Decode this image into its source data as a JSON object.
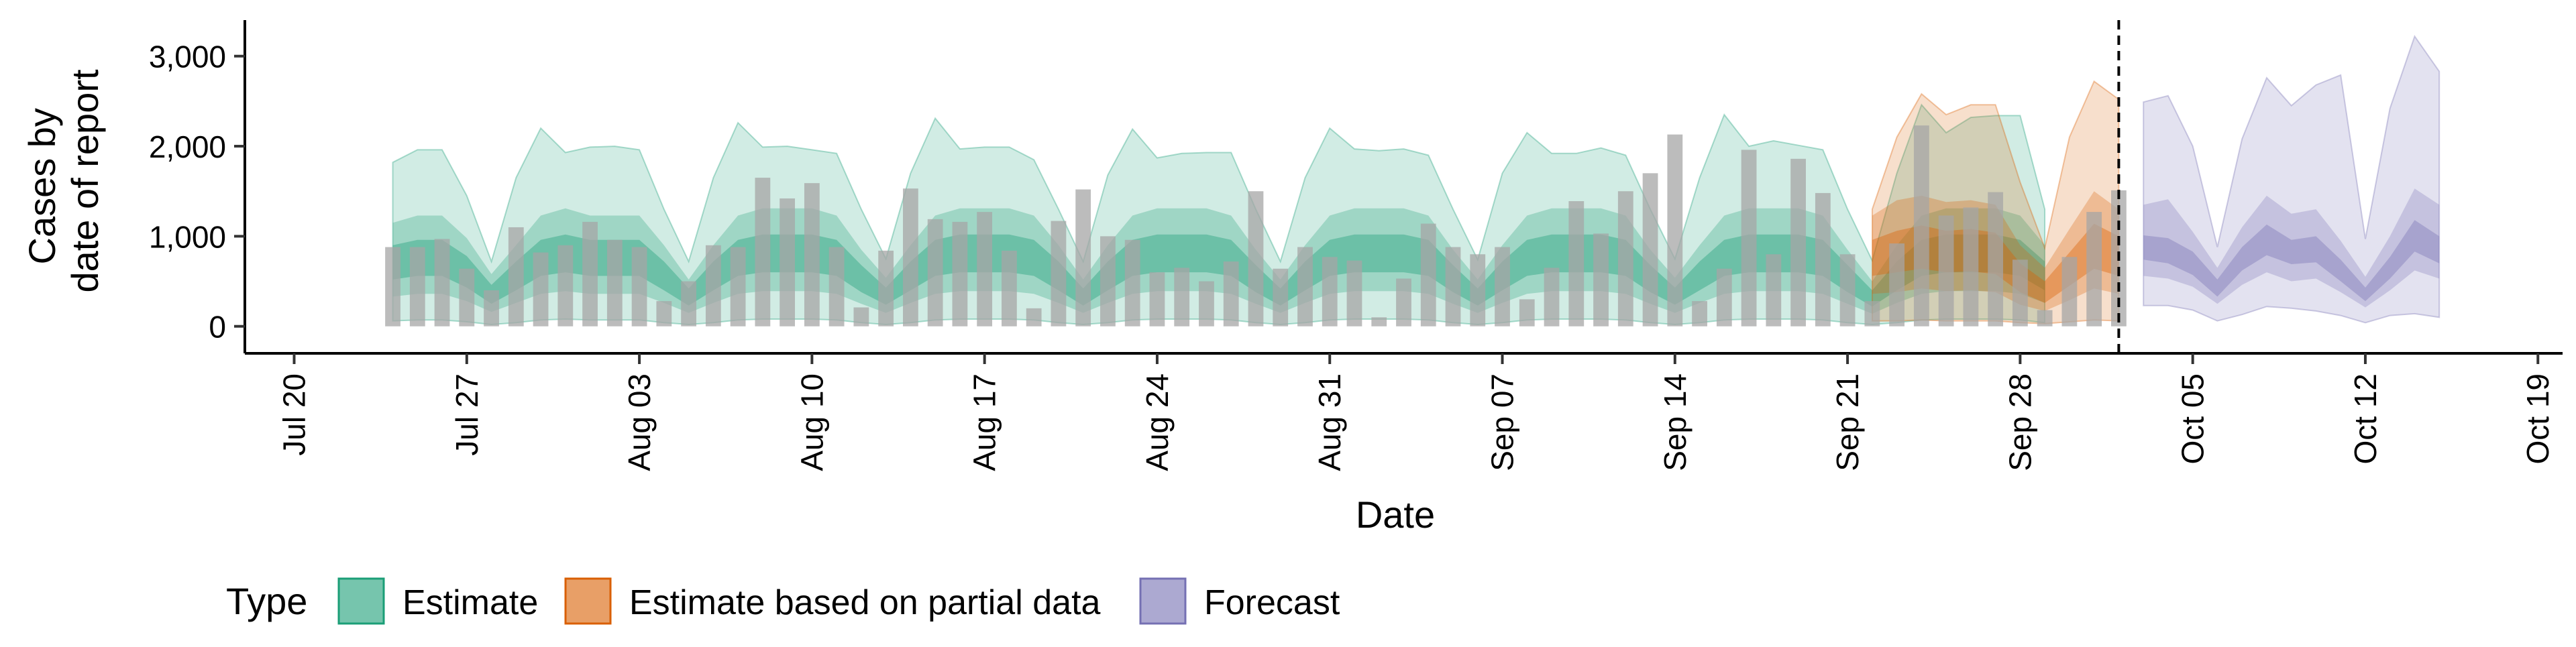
{
  "chart_data": {
    "type": "area",
    "xlabel": "Date",
    "ylabel_lines": [
      "Cases by",
      "date of report"
    ],
    "x_range": [
      "2020-07-18",
      "2020-10-20"
    ],
    "ylim": [
      -300,
      3400
    ],
    "y_ticks": [
      {
        "value": 0,
        "label": "0"
      },
      {
        "value": 1000,
        "label": "1,000"
      },
      {
        "value": 2000,
        "label": "2,000"
      },
      {
        "value": 3000,
        "label": "3,000"
      }
    ],
    "x_ticks": [
      {
        "date": "2020-07-20",
        "label": "Jul 20"
      },
      {
        "date": "2020-07-27",
        "label": "Jul 27"
      },
      {
        "date": "2020-08-03",
        "label": "Aug 03"
      },
      {
        "date": "2020-08-10",
        "label": "Aug 10"
      },
      {
        "date": "2020-08-17",
        "label": "Aug 17"
      },
      {
        "date": "2020-08-24",
        "label": "Aug 24"
      },
      {
        "date": "2020-08-31",
        "label": "Aug 31"
      },
      {
        "date": "2020-09-07",
        "label": "Sep 07"
      },
      {
        "date": "2020-09-14",
        "label": "Sep 14"
      },
      {
        "date": "2020-09-21",
        "label": "Sep 21"
      },
      {
        "date": "2020-09-28",
        "label": "Sep 28"
      },
      {
        "date": "2020-10-05",
        "label": "Oct 05"
      },
      {
        "date": "2020-10-12",
        "label": "Oct 12"
      },
      {
        "date": "2020-10-19",
        "label": "Oct 19"
      }
    ],
    "vline_date": "2020-10-02",
    "grid": false,
    "legend": {
      "position": "bottom",
      "title": "Type",
      "entries": [
        {
          "label": "Estimate",
          "color": "#1b9e77"
        },
        {
          "label": "Estimate based on partial data",
          "color": "#d95f02"
        },
        {
          "label": "Forecast",
          "color": "#7570b3"
        }
      ]
    },
    "colors": {
      "Estimate": "#1b9e77",
      "Estimate based on partial data": "#d95f02",
      "Forecast": "#7570b3",
      "bars": "#a6a6a6"
    },
    "bars": {
      "start_date": "2020-07-24",
      "values": [
        880,
        880,
        970,
        640,
        400,
        1100,
        820,
        900,
        1160,
        960,
        880,
        280,
        500,
        900,
        880,
        1650,
        1420,
        1590,
        880,
        210,
        840,
        1530,
        1190,
        1160,
        1270,
        840,
        200,
        1170,
        1520,
        1000,
        960,
        600,
        650,
        500,
        720,
        1500,
        640,
        880,
        770,
        730,
        100,
        530,
        1140,
        880,
        800,
        880,
        300,
        650,
        1390,
        1030,
        1500,
        1700,
        2130,
        280,
        640,
        1960,
        800,
        1860,
        1480,
        800,
        280,
        920,
        2230,
        1230,
        1320,
        1490,
        740,
        180,
        770,
        1270,
        1510
      ]
    },
    "series": [
      {
        "name": "Estimate",
        "start_date": "2020-07-24",
        "median": [
          700,
          750,
          750,
          600,
          350,
          550,
          750,
          800,
          750,
          750,
          750,
          550,
          320,
          550,
          750,
          800,
          800,
          800,
          750,
          520,
          330,
          550,
          750,
          800,
          800,
          800,
          750,
          550,
          320,
          550,
          750,
          800,
          800,
          800,
          750,
          520,
          320,
          550,
          750,
          800,
          800,
          800,
          750,
          520,
          320,
          550,
          750,
          800,
          800,
          800,
          750,
          520,
          330,
          550,
          750,
          800,
          800,
          800,
          750,
          520,
          300,
          550,
          750,
          800,
          800,
          800,
          750,
          550
        ],
        "inner_lo": [
          520,
          560,
          560,
          430,
          250,
          400,
          560,
          600,
          560,
          560,
          560,
          400,
          230,
          400,
          560,
          600,
          600,
          600,
          560,
          380,
          240,
          400,
          560,
          600,
          600,
          600,
          560,
          400,
          230,
          400,
          560,
          600,
          600,
          600,
          560,
          380,
          230,
          400,
          560,
          600,
          600,
          600,
          560,
          380,
          230,
          400,
          560,
          600,
          600,
          600,
          560,
          380,
          240,
          400,
          560,
          600,
          600,
          600,
          560,
          380,
          220,
          400,
          560,
          600,
          600,
          600,
          560,
          400
        ],
        "inner_hi": [
          900,
          960,
          960,
          780,
          460,
          720,
          960,
          1020,
          960,
          960,
          960,
          720,
          420,
          720,
          960,
          1020,
          1020,
          1020,
          960,
          680,
          430,
          720,
          960,
          1020,
          1020,
          1020,
          960,
          720,
          420,
          720,
          960,
          1020,
          1020,
          1020,
          960,
          680,
          420,
          720,
          960,
          1020,
          1020,
          1020,
          960,
          680,
          420,
          720,
          960,
          1020,
          1020,
          1020,
          960,
          680,
          430,
          720,
          960,
          1020,
          1020,
          1020,
          960,
          680,
          400,
          720,
          960,
          1020,
          1020,
          1020,
          960,
          720
        ],
        "mid_lo": [
          330,
          360,
          360,
          280,
          160,
          260,
          360,
          390,
          360,
          360,
          360,
          260,
          150,
          260,
          360,
          390,
          390,
          390,
          360,
          250,
          150,
          260,
          360,
          390,
          390,
          390,
          360,
          260,
          150,
          260,
          360,
          390,
          390,
          390,
          360,
          250,
          150,
          260,
          360,
          390,
          390,
          390,
          360,
          250,
          150,
          260,
          360,
          390,
          390,
          390,
          360,
          250,
          150,
          260,
          360,
          390,
          390,
          390,
          360,
          250,
          140,
          260,
          360,
          390,
          390,
          390,
          360,
          260
        ],
        "mid_hi": [
          1150,
          1230,
          1230,
          980,
          580,
          900,
          1230,
          1310,
          1230,
          1230,
          1230,
          900,
          520,
          900,
          1230,
          1310,
          1310,
          1310,
          1230,
          850,
          540,
          900,
          1230,
          1310,
          1310,
          1310,
          1230,
          900,
          520,
          900,
          1230,
          1310,
          1310,
          1310,
          1230,
          850,
          520,
          900,
          1230,
          1310,
          1310,
          1310,
          1230,
          850,
          520,
          900,
          1230,
          1310,
          1310,
          1310,
          1230,
          850,
          540,
          900,
          1230,
          1310,
          1310,
          1310,
          1230,
          850,
          500,
          900,
          1230,
          1310,
          1310,
          1310,
          1230,
          900
        ],
        "outer_lo": [
          60,
          70,
          70,
          50,
          20,
          40,
          70,
          80,
          70,
          70,
          70,
          40,
          20,
          40,
          70,
          80,
          80,
          80,
          70,
          40,
          20,
          40,
          70,
          80,
          80,
          80,
          70,
          40,
          20,
          40,
          70,
          80,
          80,
          80,
          70,
          40,
          20,
          40,
          70,
          80,
          80,
          80,
          70,
          40,
          20,
          40,
          70,
          80,
          80,
          80,
          70,
          40,
          20,
          40,
          70,
          80,
          80,
          80,
          70,
          40,
          20,
          40,
          70,
          80,
          80,
          80,
          70,
          40
        ],
        "outer_hi": [
          1820,
          1960,
          1960,
          1450,
          720,
          1650,
          2200,
          1930,
          1990,
          2000,
          1960,
          1300,
          720,
          1650,
          2260,
          1990,
          2000,
          1960,
          1920,
          1300,
          750,
          1700,
          2310,
          1970,
          1990,
          1990,
          1850,
          1300,
          720,
          1680,
          2190,
          1870,
          1920,
          1930,
          1930,
          1300,
          720,
          1650,
          2200,
          1970,
          1950,
          1970,
          1900,
          1300,
          740,
          1700,
          2150,
          1920,
          1920,
          1980,
          1900,
          1300,
          750,
          1650,
          2350,
          2000,
          2060,
          2010,
          1960,
          1300,
          730,
          1700,
          2460,
          2150,
          2320,
          2340,
          2340,
          1300
        ]
      },
      {
        "name": "Estimate based on partial data",
        "start_date": "2020-09-22",
        "median": [
          750,
          800,
          860,
          820,
          830,
          800,
          530,
          380,
          620,
          860,
          760
        ],
        "inner_lo": [
          560,
          600,
          640,
          600,
          610,
          580,
          380,
          260,
          450,
          640,
          560
        ],
        "inner_hi": [
          960,
          1060,
          1120,
          1060,
          1080,
          1040,
          700,
          500,
          820,
          1140,
          1000
        ],
        "mid_lo": [
          360,
          380,
          420,
          390,
          400,
          380,
          240,
          170,
          290,
          420,
          360
        ],
        "mid_hi": [
          1230,
          1400,
          1450,
          1380,
          1400,
          1350,
          900,
          650,
          1080,
          1500,
          1300
        ],
        "outer_lo": [
          60,
          60,
          70,
          60,
          60,
          60,
          40,
          30,
          50,
          70,
          60
        ],
        "outer_hi": [
          1300,
          2100,
          2580,
          2350,
          2460,
          2460,
          1600,
          870,
          2100,
          2720,
          2520
        ]
      },
      {
        "name": "Forecast",
        "start_date": "2020-10-03",
        "median": [
          880,
          850,
          700,
          420,
          750,
          950,
          820,
          850,
          620,
          350,
          650,
          1000,
          850
        ],
        "inner_lo": [
          740,
          700,
          570,
          330,
          620,
          790,
          690,
          710,
          500,
          280,
          530,
          830,
          700
        ],
        "inner_hi": [
          1010,
          980,
          830,
          520,
          880,
          1130,
          960,
          1000,
          740,
          430,
          770,
          1180,
          1000
        ],
        "mid_lo": [
          560,
          530,
          440,
          250,
          460,
          600,
          500,
          530,
          380,
          210,
          400,
          620,
          530
        ],
        "mid_hi": [
          1350,
          1410,
          1050,
          650,
          1100,
          1450,
          1250,
          1300,
          950,
          550,
          1000,
          1530,
          1350
        ],
        "outer_lo": [
          230,
          230,
          180,
          60,
          130,
          220,
          200,
          170,
          120,
          40,
          120,
          140,
          100
        ],
        "outer_hi": [
          2490,
          2560,
          2000,
          880,
          2080,
          2760,
          2450,
          2680,
          2790,
          970,
          2420,
          3220,
          2830
        ]
      }
    ]
  }
}
